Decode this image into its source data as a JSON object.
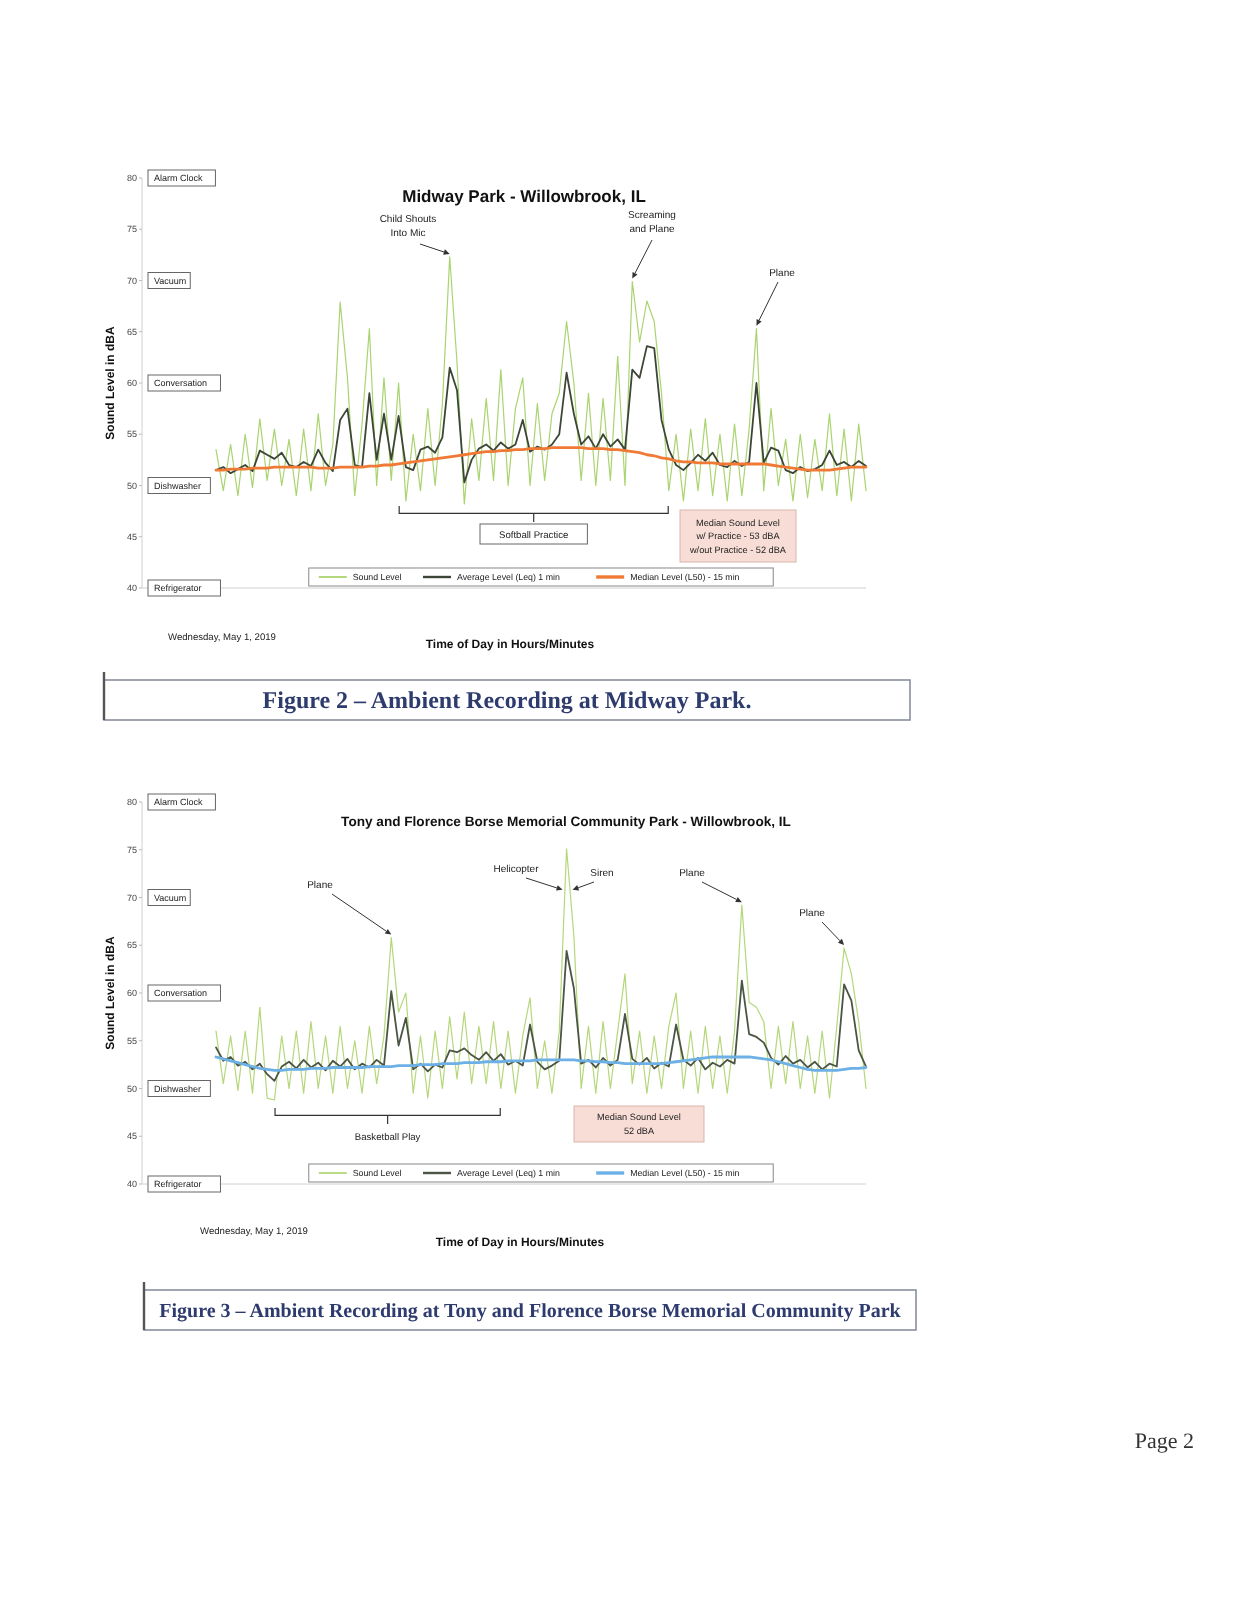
{
  "chart_data": [
    {
      "type": "line",
      "title": "Midway Park - Willowbrook, IL",
      "xlabel": "Time of Day in Hours/Minutes",
      "ylabel": "Sound Level in dBA",
      "categories": [
        null,
        null,
        null,
        null,
        null,
        null,
        null,
        null,
        null,
        null,
        null,
        null,
        null,
        null,
        null,
        null,
        null,
        null,
        null,
        null,
        null,
        null,
        null,
        null,
        null,
        null,
        null,
        null,
        null,
        null,
        null,
        null,
        null,
        null,
        null,
        null,
        null,
        null,
        null,
        null,
        null,
        null,
        null,
        null,
        null,
        null,
        null,
        null,
        null,
        null,
        null,
        null,
        null,
        null,
        null,
        null,
        null,
        null,
        null,
        null,
        null,
        null,
        null,
        null,
        null,
        null,
        null,
        null,
        null,
        null,
        null,
        null,
        null,
        null,
        null,
        null,
        null,
        null,
        null,
        null,
        null,
        null,
        null,
        null,
        null,
        null,
        null,
        null,
        null,
        null
      ],
      "series": [
        {
          "name": "Sound Level",
          "color": "#a9d46f",
          "values": [
            53.5,
            49.5,
            54.0,
            49.0,
            55.0,
            49.8,
            56.5,
            50.5,
            55.5,
            50.0,
            54.5,
            49.0,
            55.5,
            49.5,
            57.0,
            50.0,
            54.0,
            67.9,
            60.5,
            49.0,
            56.0,
            65.3,
            50.0,
            60.5,
            50.5,
            60.0,
            48.5,
            55.0,
            49.5,
            57.5,
            50.0,
            58.0,
            72.3,
            62.0,
            48.2,
            56.5,
            50.5,
            58.5,
            50.5,
            61.3,
            50.0,
            57.5,
            60.5,
            50.0,
            58.0,
            50.5,
            57.0,
            59.0,
            66.0,
            60.0,
            50.5,
            59.0,
            50.0,
            58.5,
            50.5,
            62.6,
            50.0,
            69.9,
            64.0,
            68.0,
            66.0,
            59.0,
            49.5,
            55.0,
            48.5,
            55.5,
            49.5,
            56.5,
            49.0,
            55.0,
            48.5,
            56.0,
            49.0,
            55.5,
            65.3,
            49.5,
            57.5,
            50.0,
            54.5,
            48.5,
            55.0,
            48.8,
            54.5,
            49.5,
            57.0,
            49.0,
            55.5,
            48.5,
            56.0,
            49.5
          ]
        },
        {
          "name": "Average Level (Leq) 1 min",
          "color": "#3d4636",
          "values": [
            51.5,
            51.8,
            51.2,
            51.6,
            52.0,
            51.4,
            53.4,
            53.0,
            52.6,
            53.2,
            52.0,
            51.8,
            52.3,
            51.9,
            53.5,
            52.2,
            51.4,
            56.4,
            57.5,
            52.0,
            51.8,
            59.0,
            52.5,
            57.0,
            52.5,
            56.8,
            51.8,
            51.5,
            53.5,
            53.8,
            53.2,
            54.7,
            61.5,
            59.3,
            50.3,
            52.5,
            53.6,
            54.0,
            53.4,
            54.2,
            53.6,
            54.0,
            56.4,
            53.3,
            53.8,
            53.5,
            54.0,
            55.0,
            61.0,
            57.0,
            54.0,
            54.8,
            53.6,
            55.0,
            53.8,
            54.5,
            53.5,
            61.3,
            60.5,
            63.6,
            63.4,
            56.4,
            53.5,
            52.0,
            51.5,
            52.2,
            53.0,
            52.4,
            53.2,
            52.0,
            51.8,
            52.4,
            51.9,
            52.3,
            60.0,
            52.2,
            53.7,
            53.4,
            51.5,
            51.2,
            51.8,
            51.4,
            51.6,
            52.0,
            53.4,
            52.0,
            52.3,
            51.8,
            52.4,
            51.9
          ]
        },
        {
          "name": "Median Level (L50) - 15 min",
          "color": "#f07a35",
          "values": [
            51.5,
            51.5,
            51.6,
            51.6,
            51.6,
            51.7,
            51.7,
            51.7,
            51.8,
            51.8,
            51.8,
            51.8,
            51.8,
            51.8,
            51.7,
            51.7,
            51.7,
            51.8,
            51.8,
            51.8,
            51.8,
            51.9,
            51.9,
            52.0,
            52.0,
            52.1,
            52.2,
            52.3,
            52.4,
            52.5,
            52.6,
            52.7,
            52.8,
            52.9,
            53.0,
            53.1,
            53.2,
            53.3,
            53.3,
            53.4,
            53.4,
            53.5,
            53.5,
            53.6,
            53.6,
            53.6,
            53.7,
            53.7,
            53.7,
            53.7,
            53.7,
            53.6,
            53.6,
            53.6,
            53.5,
            53.5,
            53.4,
            53.3,
            53.2,
            53.0,
            52.9,
            52.7,
            52.6,
            52.4,
            52.3,
            52.3,
            52.2,
            52.2,
            52.2,
            52.1,
            52.1,
            52.1,
            52.1,
            52.1,
            52.1,
            52.1,
            52.0,
            51.9,
            51.8,
            51.7,
            51.6,
            51.5,
            51.5,
            51.5,
            51.5,
            51.6,
            51.7,
            51.8,
            51.8,
            51.8
          ]
        }
      ],
      "ylim": [
        40,
        80
      ],
      "yticks": [
        40,
        45,
        50,
        55,
        60,
        65,
        70,
        75,
        80
      ],
      "tick_labels": "y",
      "legend": "bottom",
      "annotations": [
        "Alarm Clock",
        "Vacuum",
        "Conversation",
        "Dishwasher",
        "Refrigerator",
        "Child Shouts\nInto Mic",
        "Screaming\nand Plane",
        "Plane",
        "Softball Practice",
        "Median Sound Level\nw/ Practice - 53 dBA\nw/out Practice - 52 dBA",
        "Wednesday, May 1, 2019",
        "Figure 2 – Ambient Recording at Midway Park."
      ]
    },
    {
      "type": "line",
      "title": "Tony and Florence Borse Memorial Community Park - Willowbrook, IL",
      "xlabel": "Time of Day in Hours/Minutes",
      "ylabel": "Sound Level in dBA",
      "categories": [
        null,
        null,
        null,
        null,
        null,
        null,
        null,
        null,
        null,
        null,
        null,
        null,
        null,
        null,
        null,
        null,
        null,
        null,
        null,
        null,
        null,
        null,
        null,
        null,
        null,
        null,
        null,
        null,
        null,
        null,
        null,
        null,
        null,
        null,
        null,
        null,
        null,
        null,
        null,
        null,
        null,
        null,
        null,
        null,
        null,
        null,
        null,
        null,
        null,
        null,
        null,
        null,
        null,
        null,
        null,
        null,
        null,
        null,
        null,
        null,
        null,
        null,
        null,
        null,
        null,
        null,
        null,
        null,
        null,
        null,
        null,
        null,
        null,
        null,
        null,
        null,
        null,
        null,
        null,
        null,
        null,
        null,
        null,
        null,
        null,
        null,
        null,
        null,
        null,
        null
      ],
      "series": [
        {
          "name": "Sound Level",
          "color": "#b5d77a",
          "values": [
            56.0,
            50.5,
            55.5,
            49.8,
            56.0,
            49.5,
            58.5,
            49.0,
            48.8,
            55.5,
            50.0,
            56.0,
            49.5,
            57.0,
            50.0,
            55.5,
            49.5,
            56.5,
            50.0,
            55.0,
            49.5,
            56.5,
            50.5,
            55.5,
            65.8,
            58.0,
            60.0,
            49.5,
            55.5,
            49.0,
            56.0,
            50.0,
            57.5,
            51.0,
            58.0,
            50.5,
            56.5,
            50.5,
            57.0,
            50.0,
            56.0,
            49.5,
            55.5,
            59.5,
            50.0,
            55.0,
            49.5,
            56.0,
            75.1,
            66.0,
            50.0,
            56.5,
            49.5,
            57.0,
            50.0,
            56.0,
            62.0,
            50.5,
            56.0,
            49.5,
            55.5,
            50.0,
            56.5,
            60.0,
            50.0,
            56.0,
            49.5,
            56.5,
            50.0,
            55.5,
            49.5,
            56.0,
            69.2,
            59.0,
            58.5,
            57.0,
            50.0,
            56.5,
            50.5,
            57.0,
            50.0,
            55.5,
            49.5,
            56.0,
            49.0,
            56.5,
            64.7,
            62.0,
            57.0,
            50.0
          ]
        },
        {
          "name": "Average Level (Leq) 1 min",
          "color": "#4b5544",
          "values": [
            54.3,
            52.9,
            53.3,
            52.4,
            52.8,
            52.0,
            52.6,
            51.5,
            50.8,
            52.3,
            52.8,
            52.1,
            53.0,
            52.2,
            52.7,
            51.9,
            52.9,
            52.3,
            53.1,
            52.0,
            52.6,
            52.2,
            53.0,
            52.4,
            60.2,
            54.5,
            57.4,
            52.0,
            52.6,
            51.8,
            52.5,
            52.2,
            54.0,
            53.8,
            54.2,
            53.5,
            53.0,
            53.8,
            52.9,
            53.6,
            52.5,
            52.9,
            52.4,
            56.7,
            52.8,
            52.0,
            52.4,
            52.9,
            64.4,
            60.5,
            52.6,
            53.0,
            52.2,
            53.2,
            52.4,
            53.0,
            57.8,
            53.1,
            52.5,
            53.2,
            52.1,
            52.7,
            52.3,
            56.7,
            53.0,
            52.4,
            53.2,
            52.0,
            52.7,
            52.3,
            53.0,
            52.6,
            61.3,
            55.7,
            55.4,
            54.8,
            53.2,
            52.5,
            53.4,
            52.6,
            53.0,
            52.2,
            52.8,
            52.0,
            52.6,
            52.3,
            60.9,
            59.2,
            54.0,
            52.3
          ]
        },
        {
          "name": "Median Level (L50) - 15 min",
          "color": "#6cb0e6",
          "values": [
            53.3,
            53.1,
            52.9,
            52.7,
            52.5,
            52.3,
            52.1,
            52.0,
            51.9,
            51.9,
            52.0,
            52.0,
            52.0,
            52.1,
            52.1,
            52.1,
            52.2,
            52.2,
            52.2,
            52.2,
            52.2,
            52.3,
            52.3,
            52.3,
            52.3,
            52.4,
            52.4,
            52.4,
            52.5,
            52.5,
            52.5,
            52.6,
            52.6,
            52.6,
            52.7,
            52.7,
            52.7,
            52.8,
            52.8,
            52.8,
            52.9,
            52.9,
            52.9,
            52.9,
            53.0,
            53.0,
            53.0,
            53.0,
            53.0,
            53.0,
            52.9,
            52.9,
            52.8,
            52.8,
            52.7,
            52.7,
            52.6,
            52.6,
            52.6,
            52.6,
            52.6,
            52.6,
            52.7,
            52.8,
            52.9,
            53.0,
            53.1,
            53.2,
            53.3,
            53.3,
            53.3,
            53.3,
            53.3,
            53.3,
            53.2,
            53.1,
            53.0,
            52.8,
            52.6,
            52.4,
            52.2,
            52.0,
            51.9,
            51.9,
            51.9,
            51.9,
            52.0,
            52.1,
            52.1,
            52.2
          ]
        }
      ],
      "ylim": [
        40,
        80
      ],
      "yticks": [
        40,
        45,
        50,
        55,
        60,
        65,
        70,
        75,
        80
      ],
      "tick_labels": "y",
      "legend": "bottom",
      "annotations": [
        "Alarm Clock",
        "Vacuum",
        "Conversation",
        "Dishwasher",
        "Refrigerator",
        "Plane",
        "Helicopter",
        "Siren",
        "Plane",
        "Plane",
        "Basketball Play",
        "Median Sound Level\n52 dBA",
        "Wednesday, May 1, 2019",
        "Figure 3 – Ambient Recording at Tony and Florence Borse Memorial Community Park",
        "Page 2"
      ]
    }
  ]
}
